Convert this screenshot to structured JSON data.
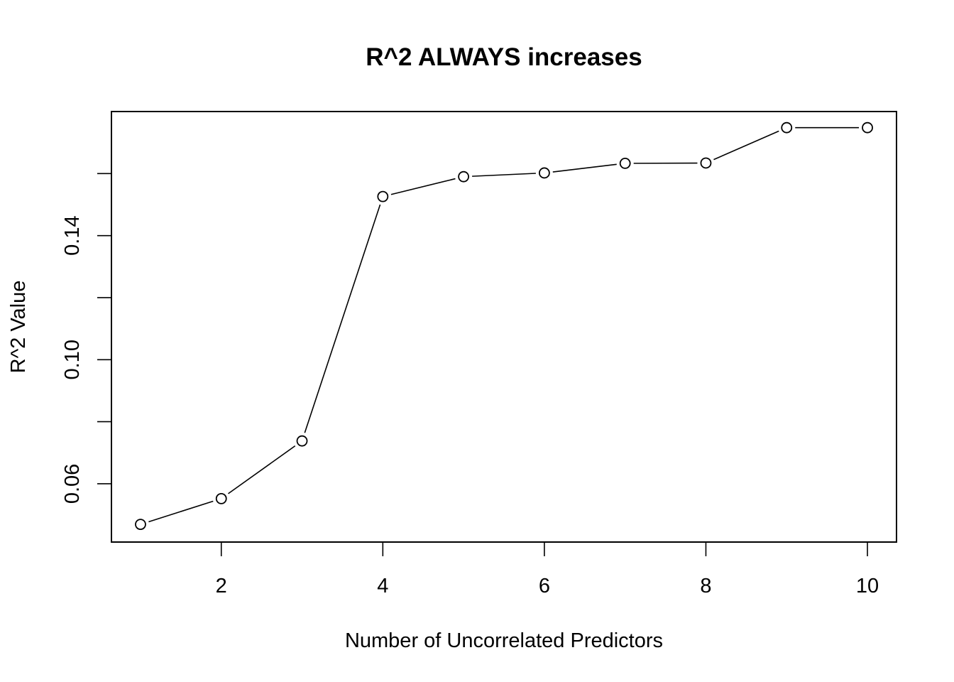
{
  "chart_data": {
    "type": "line",
    "title": "R^2 ALWAYS increases",
    "xlabel": "Number of Uncorrelated Predictors",
    "ylabel": "R^2 Value",
    "x": [
      1,
      2,
      3,
      4,
      5,
      6,
      7,
      8,
      9,
      10
    ],
    "series": [
      {
        "values": [
          0.0469,
          0.0552,
          0.0738,
          0.1526,
          0.159,
          0.1602,
          0.1633,
          0.1634,
          0.1748,
          0.1748
        ]
      }
    ],
    "xlim": [
      0.64,
      10.36
    ],
    "ylim": [
      0.0412,
      0.18
    ],
    "x_ticks": [
      2,
      4,
      6,
      8,
      10
    ],
    "x_tick_labels": [
      "2",
      "4",
      "6",
      "8",
      "10"
    ],
    "y_ticks": [
      0.06,
      0.08,
      0.1,
      0.12,
      0.14,
      0.16
    ],
    "y_tick_labels": [
      "0.06",
      "",
      "0.10",
      "",
      "0.14",
      ""
    ],
    "markers": "open-circle",
    "line_style": "gapped",
    "grid": false,
    "legend": "none"
  }
}
